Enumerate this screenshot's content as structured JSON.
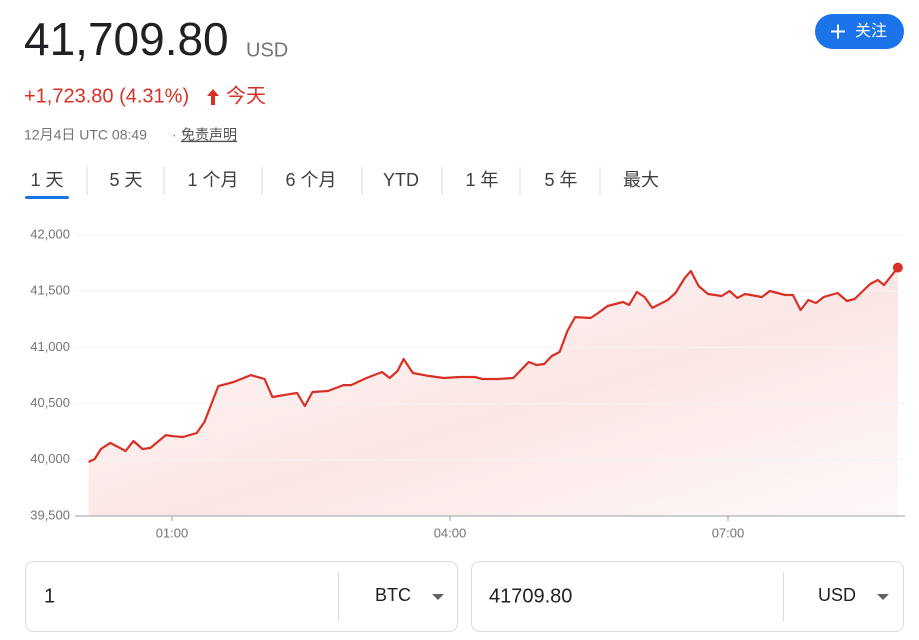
{
  "header": {
    "price": "41,709.80",
    "currency": "USD",
    "change": "+1,723.80 (4.31%)",
    "period": "今天",
    "timestamp": "12月4日 UTC 08:49",
    "separator": "·",
    "disclaimer": "免责声明",
    "follow": "关注"
  },
  "tabs": {
    "items": [
      "1 天",
      "5 天",
      "1 个月",
      "6 个月",
      "YTD",
      "1 年",
      "5 年",
      "最大"
    ],
    "selected": 0
  },
  "converter": {
    "from_amount": "1",
    "from_unit": "BTC",
    "to_amount": "41709.80",
    "to_unit": "USD"
  },
  "chart_data": {
    "type": "line",
    "color": "#d93025",
    "grid": true,
    "x": [
      6,
      10,
      14,
      20,
      25,
      30,
      35,
      41,
      46,
      56,
      61,
      67,
      76,
      81,
      90,
      100,
      111,
      120,
      125,
      137,
      141,
      146,
      151,
      161,
      171,
      176,
      186,
      196,
      201,
      206,
      210,
      216,
      226,
      236,
      246,
      256,
      261,
      271,
      281,
      291,
      296,
      301,
      306,
      311,
      316,
      321,
      331,
      336,
      342,
      352,
      356,
      361,
      366,
      371,
      381,
      386,
      392,
      396,
      401,
      407,
      416,
      421,
      426,
      431,
      442,
      447,
      457,
      462,
      467,
      472,
      477,
      482,
      491,
      497,
      502,
      512,
      517,
      521,
      530
    ],
    "values": [
      39980,
      40007,
      40096,
      40150,
      40115,
      40078,
      40167,
      40096,
      40105,
      40220,
      40210,
      40203,
      40238,
      40336,
      40656,
      40692,
      40754,
      40719,
      40559,
      40586,
      40594,
      40479,
      40603,
      40612,
      40665,
      40665,
      40728,
      40781,
      40728,
      40790,
      40897,
      40772,
      40746,
      40728,
      40737,
      40737,
      40719,
      40719,
      40728,
      40870,
      40843,
      40852,
      40924,
      40959,
      41146,
      41270,
      41262,
      41306,
      41368,
      41404,
      41377,
      41493,
      41448,
      41351,
      41422,
      41484,
      41617,
      41680,
      41546,
      41475,
      41457,
      41502,
      41440,
      41475,
      41448,
      41502,
      41466,
      41466,
      41333,
      41422,
      41395,
      41448,
      41484,
      41413,
      41431,
      41564,
      41600,
      41555,
      41709.8
    ],
    "xlim": [
      0,
      535
    ],
    "xticks": [
      {
        "value": 60,
        "label": "01:00"
      },
      {
        "value": 240,
        "label": "04:00"
      },
      {
        "value": 420,
        "label": "07:00"
      }
    ],
    "ylim": [
      39500,
      42000
    ],
    "yticks": [
      {
        "value": 39500,
        "label": "39,500"
      },
      {
        "value": 40000,
        "label": "40,000"
      },
      {
        "value": 40500,
        "label": "40,500"
      },
      {
        "value": 41000,
        "label": "41,000"
      },
      {
        "value": 41500,
        "label": "41,500"
      },
      {
        "value": 42000,
        "label": "42,000"
      }
    ]
  }
}
